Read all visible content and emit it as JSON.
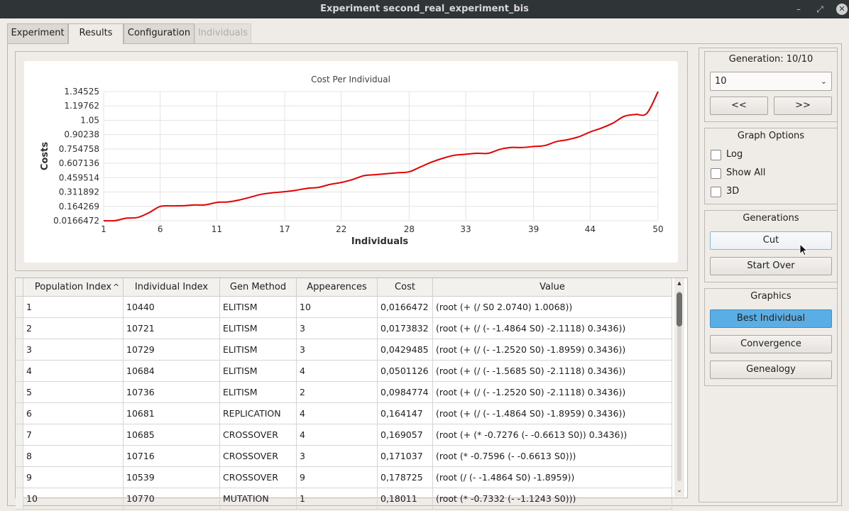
{
  "window": {
    "title": "Experiment second_real_experiment_bis",
    "minimize_glyph": "–",
    "maximize_glyph": "⤢",
    "close_glyph": "✕"
  },
  "tabs": [
    {
      "label": "Experiment",
      "state": "normal"
    },
    {
      "label": "Results",
      "state": "active"
    },
    {
      "label": "Configuration",
      "state": "normal"
    },
    {
      "label": "Individuals",
      "state": "disabled"
    }
  ],
  "chart_data": {
    "type": "line",
    "title": "Cost Per Individual",
    "xlabel": "Individuals",
    "ylabel": "Costs",
    "xlim": [
      1,
      50
    ],
    "ylim": [
      0.0166472,
      1.34525
    ],
    "x_ticks": [
      "1",
      "6",
      "11",
      "17",
      "22",
      "28",
      "33",
      "39",
      "44",
      "50"
    ],
    "y_ticks": [
      "1.34525",
      "1.19762",
      "1.05",
      "0.90238",
      "0.754758",
      "0.607136",
      "0.459514",
      "0.311892",
      "0.164269",
      "0.0166472"
    ],
    "series_color": "#e60000",
    "x": [
      1,
      2,
      3,
      4,
      5,
      6,
      7,
      8,
      9,
      10,
      11,
      12,
      13,
      14,
      15,
      16,
      17,
      18,
      19,
      20,
      21,
      22,
      23,
      24,
      25,
      26,
      27,
      28,
      29,
      30,
      31,
      32,
      33,
      34,
      35,
      36,
      37,
      38,
      39,
      40,
      41,
      42,
      43,
      44,
      45,
      46,
      47,
      48,
      49,
      50
    ],
    "values": [
      0.0166472,
      0.0173832,
      0.0429485,
      0.0501126,
      0.0984774,
      0.164147,
      0.169057,
      0.171037,
      0.178725,
      0.18011,
      0.205,
      0.21,
      0.23,
      0.26,
      0.29,
      0.305,
      0.315,
      0.33,
      0.35,
      0.36,
      0.39,
      0.41,
      0.44,
      0.48,
      0.49,
      0.5,
      0.51,
      0.52,
      0.57,
      0.62,
      0.66,
      0.69,
      0.7,
      0.71,
      0.71,
      0.75,
      0.77,
      0.77,
      0.78,
      0.79,
      0.83,
      0.85,
      0.88,
      0.93,
      0.97,
      1.02,
      1.09,
      1.11,
      1.12,
      1.34525
    ]
  },
  "table": {
    "columns": [
      "Population Index",
      "Individual Index",
      "Gen Method",
      "Appearences",
      "Cost",
      "Value"
    ],
    "sort_icon": "^",
    "rows": [
      [
        "1",
        "10440",
        "ELITISM",
        "10",
        "0,0166472",
        "(root (+ (/ S0 2.0740) 1.0068))"
      ],
      [
        "2",
        "10721",
        "ELITISM",
        "3",
        "0,0173832",
        "(root (+ (/ (- -1.4864 S0) -2.1118) 0.3436))"
      ],
      [
        "3",
        "10729",
        "ELITISM",
        "3",
        "0,0429485",
        "(root (+ (/ (- -1.2520 S0) -1.8959) 0.3436))"
      ],
      [
        "4",
        "10684",
        "ELITISM",
        "4",
        "0,0501126",
        "(root (+ (/ (- -1.5685 S0) -2.1118) 0.3436))"
      ],
      [
        "5",
        "10736",
        "ELITISM",
        "2",
        "0,0984774",
        "(root (+ (/ (- -1.2520 S0) -2.1118) 0.3436))"
      ],
      [
        "6",
        "10681",
        "REPLICATION",
        "4",
        "0,164147",
        "(root (+ (/ (- -1.4864 S0) -1.8959) 0.3436))"
      ],
      [
        "7",
        "10685",
        "CROSSOVER",
        "4",
        "0,169057",
        "(root (+ (* -0.7276 (- -0.6613 S0)) 0.3436))"
      ],
      [
        "8",
        "10716",
        "CROSSOVER",
        "3",
        "0,171037",
        "(root (* -0.7596 (- -0.6613 S0)))"
      ],
      [
        "9",
        "10539",
        "CROSSOVER",
        "9",
        "0,178725",
        "(root (/ (- -1.4864 S0) -1.8959))"
      ],
      [
        "10",
        "10770",
        "MUTATION",
        "1",
        "0,18011",
        "(root (* -0.7332 (- -1.1243 S0)))"
      ]
    ]
  },
  "scrollbar": {
    "up_glyph": "▲",
    "down_glyph": "⌄"
  },
  "generation": {
    "label": "Generation: 10/10",
    "selected": "10",
    "chevron": "⌄",
    "prev_label": "<<",
    "next_label": ">>"
  },
  "graph_options": {
    "title": "Graph Options",
    "items": [
      {
        "label": "Log",
        "checked": false
      },
      {
        "label": "Show All",
        "checked": false
      },
      {
        "label": "3D",
        "checked": false
      }
    ]
  },
  "generations": {
    "title": "Generations",
    "cut_label": "Cut",
    "start_over_label": "Start Over"
  },
  "graphics": {
    "title": "Graphics",
    "best_label": "Best Individual",
    "convergence_label": "Convergence",
    "genealogy_label": "Genealogy"
  }
}
